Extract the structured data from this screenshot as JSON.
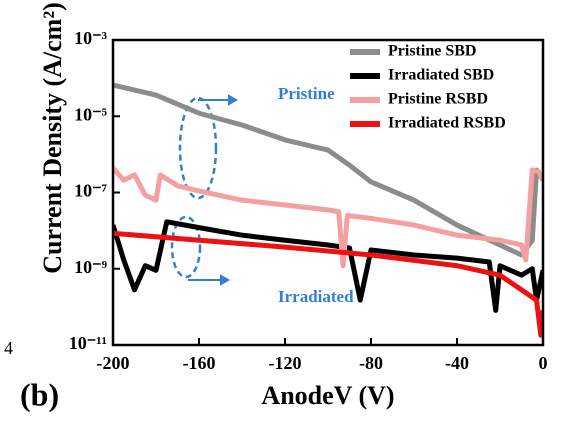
{
  "chart_data": {
    "type": "line",
    "xlabel": "AnodeV (V)",
    "ylabel": "Current Density (A/cm²)",
    "panel_label": "(b)",
    "edge_text": "4",
    "log_y": true,
    "legend": "upper right",
    "xlim": [
      -200,
      0
    ],
    "xticks": [
      -200,
      -160,
      -120,
      -80,
      -40,
      0
    ],
    "ylim": [
      1e-11,
      0.001
    ],
    "yticks": [
      {
        "value": 1e-11,
        "label": "10⁻¹¹"
      },
      {
        "value": 1e-09,
        "label": "10⁻⁹"
      },
      {
        "value": 1e-07,
        "label": "10⁻⁷"
      },
      {
        "value": 1e-05,
        "label": "10⁻⁵"
      },
      {
        "value": 0.001,
        "label": "10⁻³"
      }
    ],
    "annotations": [
      {
        "text": "Pristine",
        "x": -160,
        "y": 3.6e-05,
        "color": "#2f7fd6"
      },
      {
        "text": "Irradiated",
        "x": -160,
        "y": 1.7e-10,
        "color": "#2f7fd6"
      }
    ],
    "series": [
      {
        "name": "Pristine SBD",
        "color": "#8c8c8c",
        "x": [
          -200,
          -180,
          -160,
          -140,
          -120,
          -100,
          -90,
          -80,
          -60,
          -40,
          -20,
          -10,
          -5,
          -3,
          0
        ],
        "values": [
          6.6e-05,
          3.6e-05,
          1.2e-05,
          5.9e-06,
          2.4e-06,
          1.3e-06,
          5.2e-07,
          1.9e-07,
          6.3e-08,
          1.4e-08,
          4.2e-09,
          2.3e-09,
          5.6e-09,
          3.9e-07,
          2.1e-07
        ]
      },
      {
        "name": "Irradiated SBD",
        "color": "#000000",
        "x": [
          -200,
          -195,
          -190,
          -185,
          -180,
          -175,
          -160,
          -140,
          -120,
          -100,
          -90,
          -85,
          -80,
          -60,
          -40,
          -25,
          -22,
          -20,
          -10,
          -5,
          -3,
          0
        ],
        "values": [
          1.4e-08,
          1.7e-09,
          2.8e-10,
          1.2e-09,
          9.1e-10,
          1.7e-08,
          1.2e-08,
          7.6e-09,
          5.6e-09,
          4.2e-09,
          3.5e-09,
          1.5e-10,
          3.1e-09,
          2.3e-09,
          1.9e-09,
          1.5e-09,
          8.1e-11,
          1.2e-09,
          6.8e-10,
          1e-09,
          1.5e-10,
          9.1e-10
        ]
      },
      {
        "name": "Pristine RSBD",
        "color": "#f4a0a0",
        "x": [
          -200,
          -195,
          -190,
          -185,
          -180,
          -178,
          -170,
          -160,
          -140,
          -120,
          -100,
          -95,
          -93,
          -91,
          -80,
          -60,
          -40,
          -20,
          -10,
          -8,
          -5,
          -2,
          0
        ],
        "values": [
          4.4e-07,
          2.1e-07,
          2.9e-07,
          8.5e-08,
          6.3e-08,
          2.9e-07,
          1.5e-07,
          1.1e-07,
          6.3e-08,
          4.7e-08,
          3.5e-08,
          3.1e-08,
          1.2e-09,
          2.5e-08,
          2.1e-08,
          1.4e-08,
          7.6e-09,
          5.6e-09,
          4.2e-09,
          1.7e-09,
          3.9e-07,
          3.5e-07,
          2.1e-07
        ]
      },
      {
        "name": "Irradiated RSBD",
        "color": "#ee1111",
        "x": [
          -200,
          -160,
          -120,
          -80,
          -40,
          -20,
          -10,
          -3,
          -1,
          0
        ],
        "values": [
          8.5e-09,
          5.6e-09,
          3.7e-09,
          2.3e-09,
          1.2e-09,
          6.8e-10,
          2.8e-10,
          1.5e-10,
          1.8e-11,
          8.1e-11
        ]
      }
    ]
  }
}
